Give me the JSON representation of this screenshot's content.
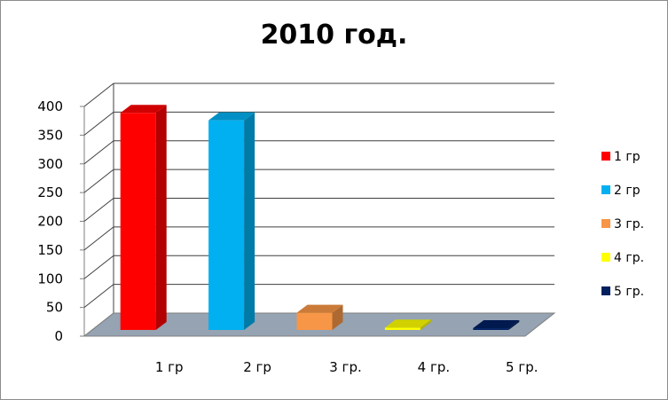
{
  "chart_data": {
    "type": "bar",
    "title": "2010 год.",
    "categories": [
      "1 гр",
      "2 гр",
      "3 гр.",
      "4 гр.",
      "5 гр."
    ],
    "values": [
      378,
      365,
      30,
      4,
      3
    ],
    "colors": [
      "#ff0000",
      "#00b0f0",
      "#f79646",
      "#ffff00",
      "#002060"
    ],
    "ylim": [
      0,
      400
    ],
    "yticks": [
      0,
      50,
      100,
      150,
      200,
      250,
      300,
      350,
      400
    ],
    "grid": true,
    "legend_position": "right",
    "style": "3d"
  }
}
